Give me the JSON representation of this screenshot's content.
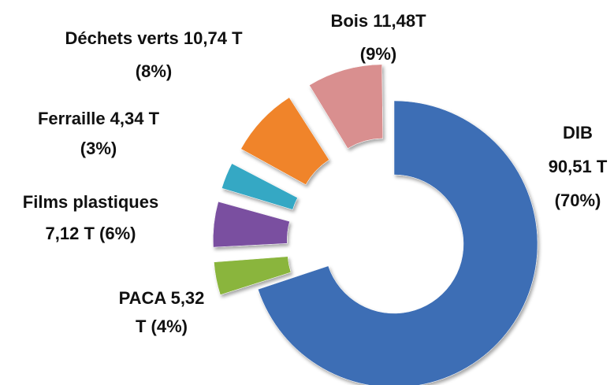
{
  "chart_data": {
    "type": "donut",
    "values": [
      90.51,
      5.32,
      7.12,
      4.34,
      10.74,
      11.48
    ],
    "colors": [
      "#3d6eb5",
      "#8ab53e",
      "#7a4fa0",
      "#36a8c4",
      "#f0842a",
      "#d98f8f"
    ],
    "labels": [
      [
        "DIB",
        "90,51 T",
        "(70%)"
      ],
      [
        "PACA 5,32",
        "T (4%)"
      ],
      [
        "Films plastiques",
        "7,12 T (6%)"
      ],
      [
        "Ferraille 4,34 T",
        "(3%)"
      ],
      [
        "Déchets verts 10,74 T",
        "(8%)"
      ],
      [
        "Bois 11,48T",
        "(9%)"
      ]
    ]
  }
}
